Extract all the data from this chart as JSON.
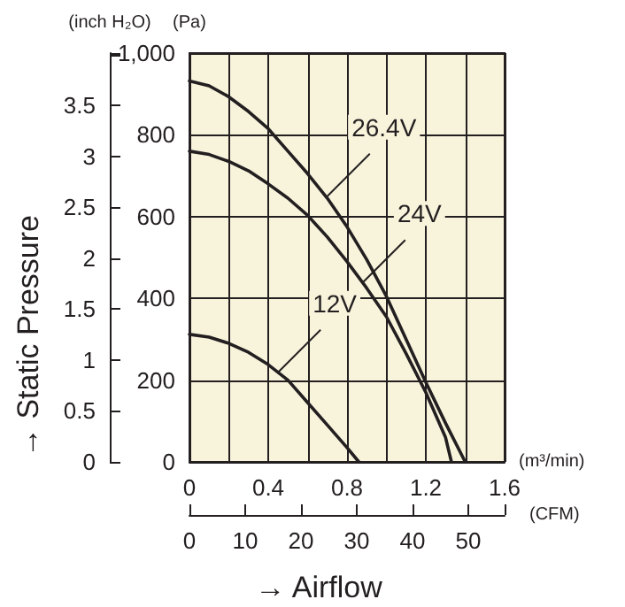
{
  "chart_data": {
    "type": "line",
    "xlabel": "(m³/min)",
    "x2label": "(CFM)",
    "ylabel": "(Pa)",
    "y2label": "(inch H₂O)",
    "xlim": [
      0,
      1.6
    ],
    "xticks": [
      0,
      {
        "value": 0.2,
        "label": null
      },
      0.4,
      {
        "value": 0.6,
        "label": null
      },
      0.8,
      {
        "value": 1.0,
        "label": null
      },
      1.2,
      {
        "value": 1.4,
        "label": null
      },
      1.6
    ],
    "x2lim": [
      0,
      56.5
    ],
    "x2ticks": [
      0,
      10,
      20,
      30,
      40,
      50
    ],
    "ylim": [
      0,
      1000
    ],
    "yticks": [
      0,
      200,
      400,
      600,
      800,
      {
        "value": 1000,
        "label": "1,000"
      }
    ],
    "y2lim": [
      0,
      4.015
    ],
    "y2ticks": [
      0,
      0.5,
      1.0,
      1.5,
      2.0,
      2.5,
      3.0,
      3.5
    ],
    "grid": true,
    "marker": "none",
    "line_style": "solid",
    "series": [
      {
        "color": "#231f20",
        "x": [
          0,
          0.1,
          0.2,
          0.3,
          0.4,
          0.5,
          0.6,
          0.7,
          0.8,
          0.9,
          1.0,
          1.1,
          1.2,
          1.3,
          1.4
        ],
        "values": [
          932,
          920,
          893,
          857,
          815,
          760,
          705,
          645,
          575,
          495,
          405,
          300,
          195,
          95,
          0
        ]
      },
      {
        "color": "#231f20",
        "x": [
          0,
          0.1,
          0.2,
          0.3,
          0.4,
          0.5,
          0.6,
          0.7,
          0.8,
          0.9,
          1.0,
          1.1,
          1.2,
          1.3,
          1.33
        ],
        "values": [
          760,
          752,
          735,
          712,
          680,
          645,
          603,
          550,
          490,
          425,
          355,
          265,
          170,
          60,
          0
        ]
      },
      {
        "color": "#231f20",
        "x": [
          0,
          0.1,
          0.2,
          0.3,
          0.4,
          0.5,
          0.6,
          0.7,
          0.8,
          0.86
        ],
        "values": [
          312,
          305,
          290,
          268,
          238,
          200,
          145,
          90,
          35,
          0
        ]
      }
    ],
    "annotations": [
      "→ Static Pressure",
      "→ Airflow",
      {
        "text": "26.4V",
        "x": 0.7,
        "y": 650
      },
      {
        "text": "24V",
        "x": 0.88,
        "y": 439
      },
      {
        "text": "12V",
        "x": 0.45,
        "y": 219
      }
    ]
  }
}
